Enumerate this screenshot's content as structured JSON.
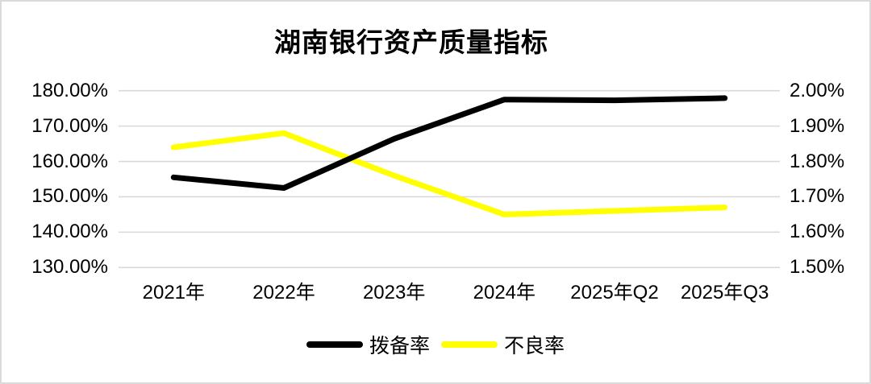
{
  "title": "湖南银行资产质量指标",
  "colors": {
    "provision_line": "#000000",
    "npl_line": "#ffff00",
    "gridline": "#d9d9d9",
    "frame_border": "#dadada",
    "text": "#000000",
    "background": "#ffffff"
  },
  "chart_data": {
    "type": "line",
    "title": "湖南银行资产质量指标",
    "categories": [
      "2021年",
      "2022年",
      "2023年",
      "2024年",
      "2025年Q2",
      "2025年Q3"
    ],
    "series": [
      {
        "name": "不良率",
        "axis": "right",
        "color": "#ffff00",
        "values": [
          1.84,
          1.88,
          1.76,
          1.65,
          1.66,
          1.67
        ]
      },
      {
        "name": "拨备率",
        "axis": "left",
        "color": "#000000",
        "values": [
          155.5,
          152.5,
          166.4,
          177.5,
          177.3,
          177.9
        ]
      }
    ],
    "left_axis": {
      "tick_labels": [
        "180.00%",
        "170.00%",
        "160.00%",
        "150.00%",
        "140.00%",
        "130.00%"
      ],
      "min": 130,
      "max": 180,
      "step": 10
    },
    "right_axis": {
      "tick_labels": [
        "2.00%",
        "1.90%",
        "1.80%",
        "1.70%",
        "1.60%",
        "1.50%"
      ],
      "min": 1.5,
      "max": 2.0,
      "step": 0.1
    },
    "grid": true,
    "legend_position": "bottom",
    "legend": [
      {
        "label": "拨备率",
        "color": "#000000"
      },
      {
        "label": "不良率",
        "color": "#ffff00"
      }
    ]
  }
}
